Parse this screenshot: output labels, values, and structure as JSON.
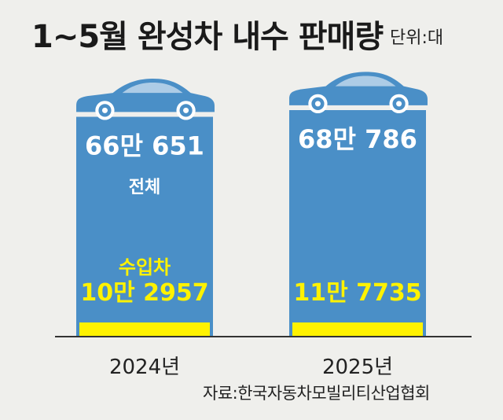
{
  "header": {
    "title": "1~5월 완성차 내수 판매량",
    "unit": "단위:대"
  },
  "source": "자료:한국자동차모빌리티산업협회",
  "colors": {
    "total_bar": "#4a8fc7",
    "import_bar": "#fff200",
    "car": "#4a8fc7",
    "background": "#efefec",
    "axis": "#333333"
  },
  "icons": [
    "car-icon"
  ],
  "chart_data": {
    "type": "bar",
    "categories": [
      "2024년",
      "2025년"
    ],
    "series": [
      {
        "name": "전체",
        "values": [
          660651,
          680786
        ],
        "labels": [
          "66만 651",
          "68만 786"
        ]
      },
      {
        "name": "수입차",
        "values": [
          102957,
          117735
        ],
        "labels": [
          "10만 2957",
          "11만 7735"
        ]
      }
    ]
  }
}
